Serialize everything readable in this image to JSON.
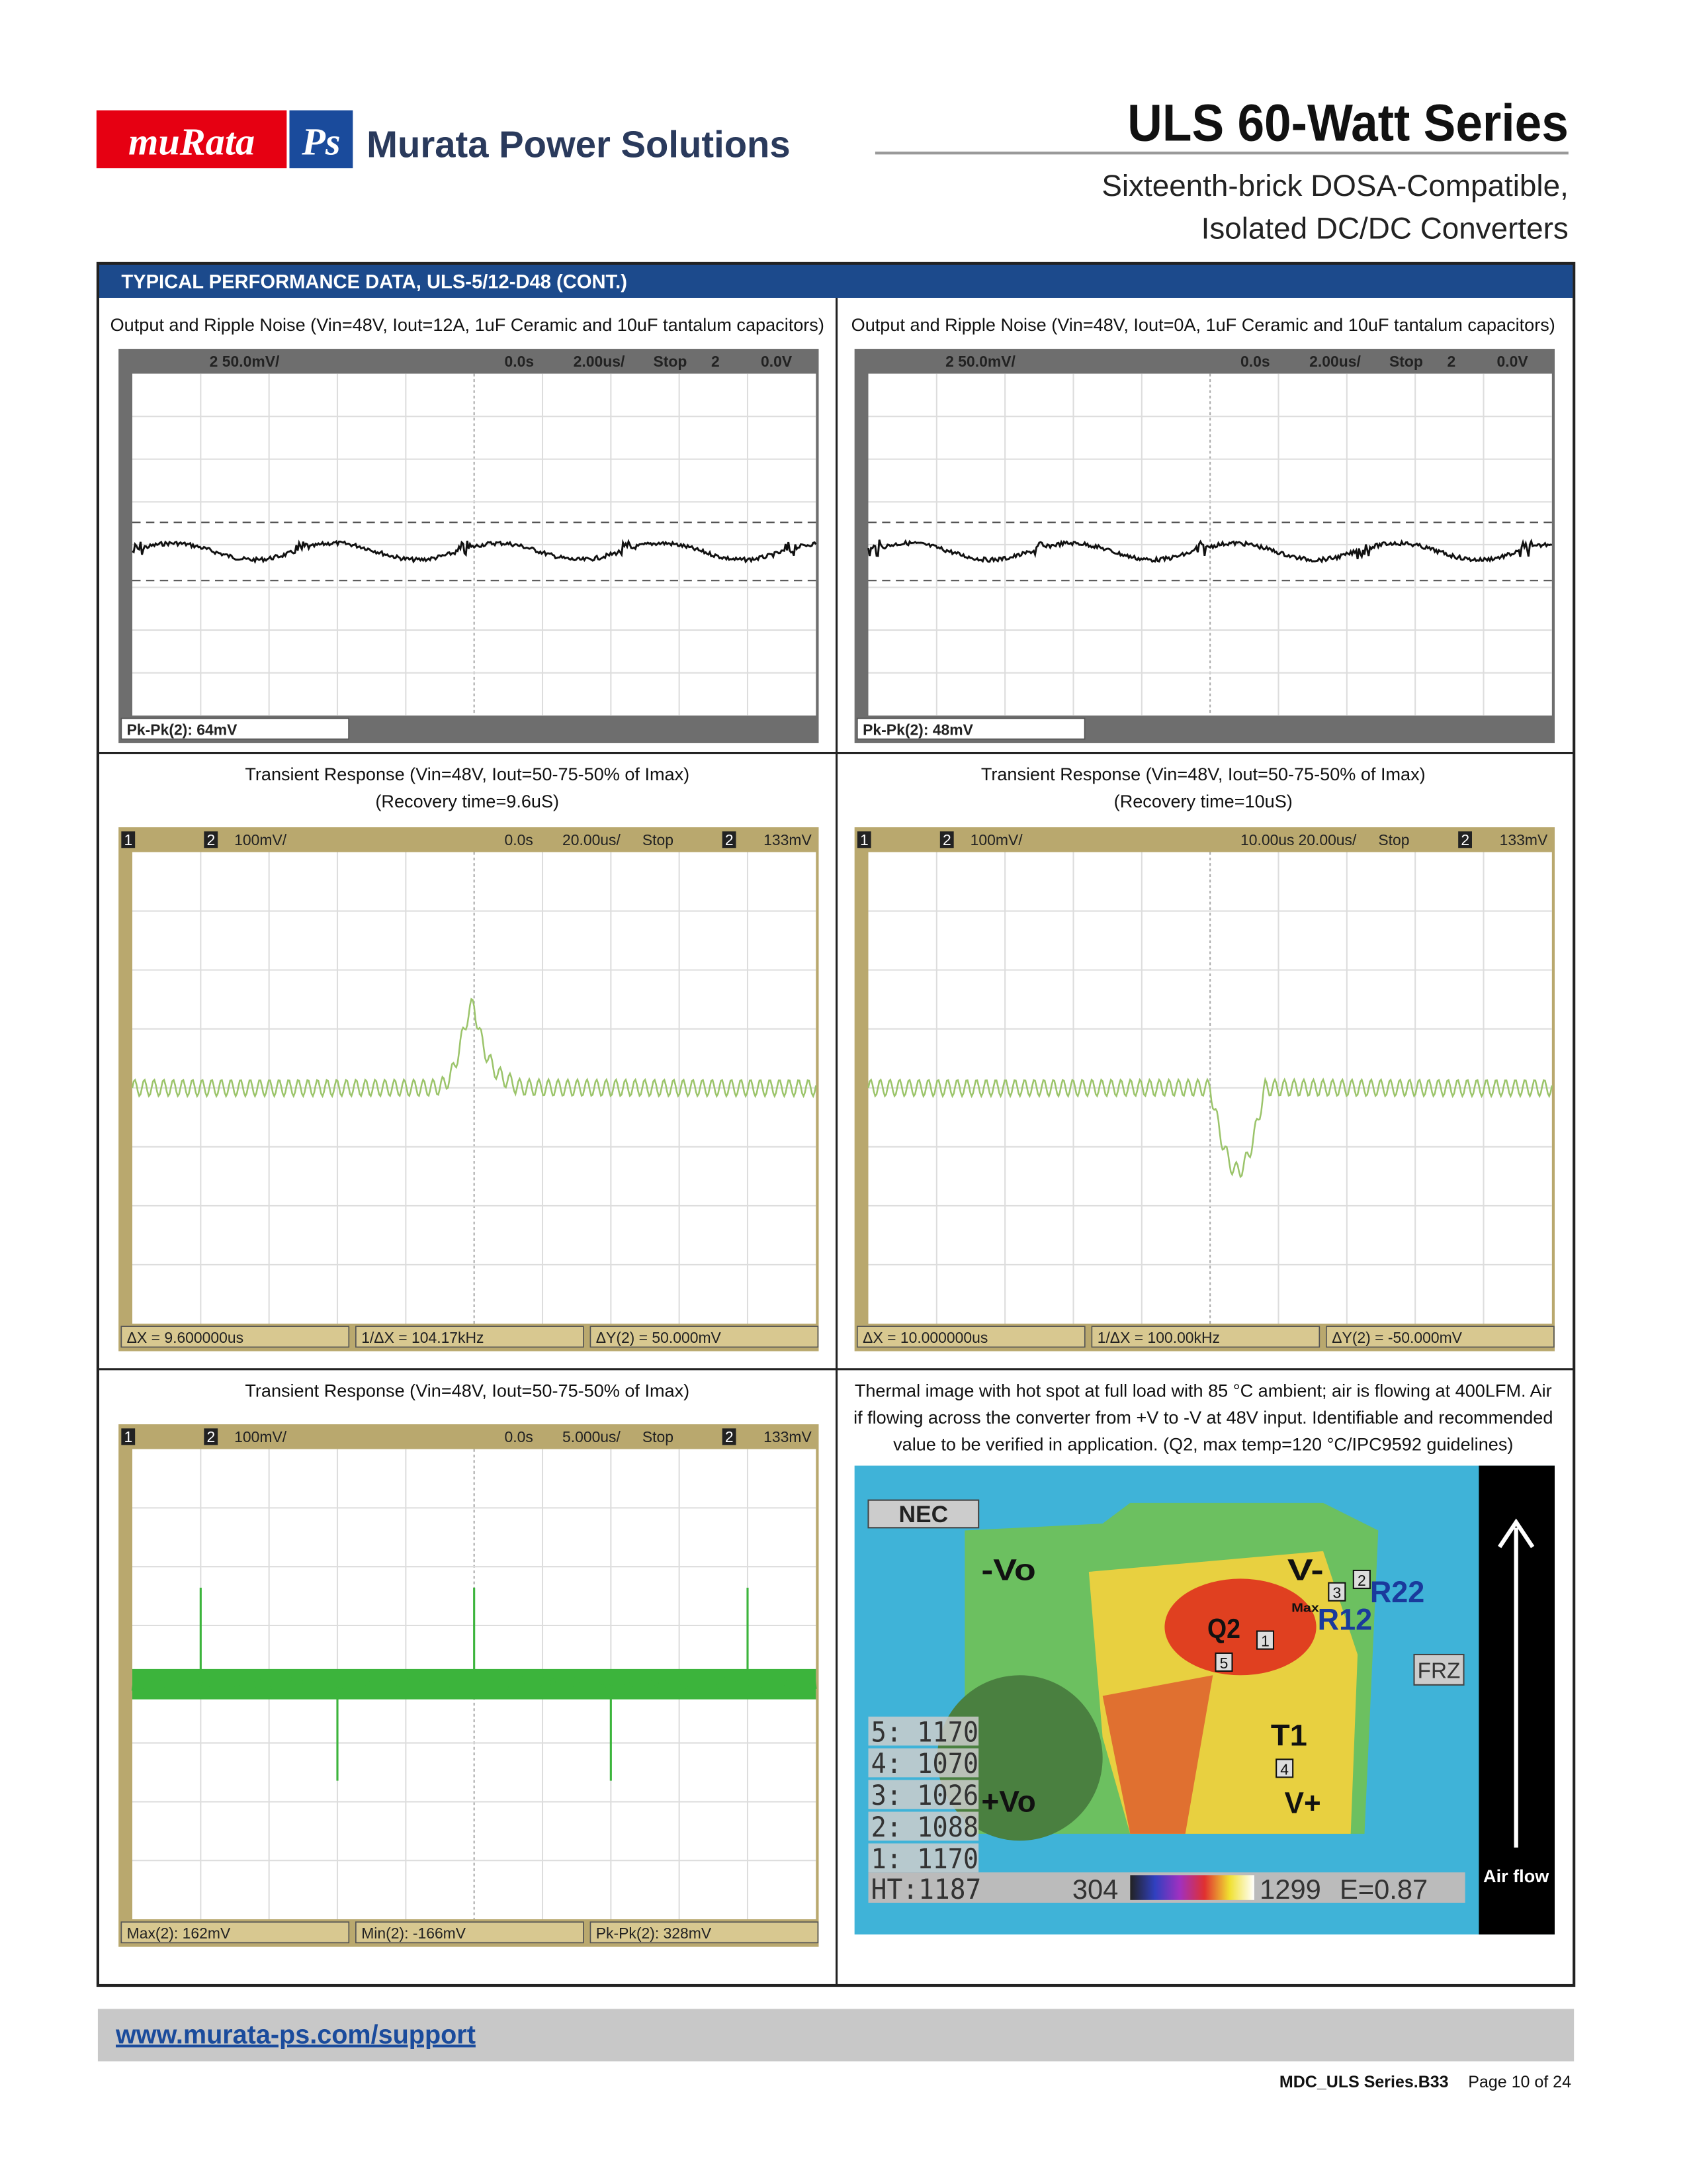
{
  "header": {
    "logo_left": "muRata",
    "logo_right": "Ps",
    "company": "Murata Power Solutions",
    "title": "ULS 60-Watt Series",
    "subtitle": [
      "Sixteenth-brick DOSA-Compatible,",
      "Isolated DC/DC Converters"
    ]
  },
  "section_title": "TYPICAL PERFORMANCE DATA, ULS-5/12-D48 (CONT.)",
  "panels": [
    {
      "caption": [
        "Output and Ripple Noise (Vin=48V, Iout=12A, 1uF Ceramic and 10uF tantalum capacitors)"
      ],
      "scope": {
        "header": [
          "2 50.0mV/",
          "0.0s",
          "2.00us/",
          "Stop",
          "2",
          "0.0V"
        ],
        "footer": [
          "Pk-Pk(2):  64mV"
        ]
      }
    },
    {
      "caption": [
        "Output and Ripple Noise (Vin=48V, Iout=0A, 1uF Ceramic and 10uF tantalum capacitors)"
      ],
      "scope": {
        "header": [
          "2 50.0mV/",
          "0.0s",
          "2.00us/",
          "Stop",
          "2",
          "0.0V"
        ],
        "footer": [
          "Pk-Pk(2):  48mV"
        ]
      }
    },
    {
      "caption": [
        "Transient Response (Vin=48V, Iout=50-75-50% of Imax)",
        "(Recovery time=9.6uS)"
      ],
      "scope": {
        "header": [
          "1",
          "2",
          "100mV/",
          "0.0s",
          "20.00us/",
          "Stop",
          "2",
          "133mV"
        ],
        "footer": [
          "ΔX = 9.600000us",
          "1/ΔX = 104.17kHz",
          "ΔY(2) = 50.000mV"
        ]
      }
    },
    {
      "caption": [
        "Transient Response (Vin=48V, Iout=50-75-50% of Imax)",
        "(Recovery time=10uS)"
      ],
      "scope": {
        "header": [
          "1",
          "2",
          "100mV/",
          "10.00us",
          "20.00us/",
          "Stop",
          "2",
          "133mV"
        ],
        "footer": [
          "ΔX = 10.000000us",
          "1/ΔX = 100.00kHz",
          "ΔY(2) = -50.000mV"
        ]
      }
    },
    {
      "caption": [
        "Transient Response (Vin=48V, Iout=50-75-50% of Imax)"
      ],
      "scope": {
        "header": [
          "1",
          "2",
          "100mV/",
          "0.0s",
          "5.000us/",
          "Stop",
          "2",
          "133mV"
        ],
        "footer": [
          "Max(2): 162mV",
          "Min(2): -166mV",
          "Pk-Pk(2): 328mV"
        ]
      }
    },
    {
      "caption": [
        "Thermal image with hot spot at full load with 85 °C ambient; air is flowing at 400LFM. Air",
        "if flowing across the converter from +V to -V at 48V input. Identifiable and recommended",
        "value to be verified in application. (Q2, max temp=120 °C/IPC9592 guidelines)"
      ],
      "thermal": {
        "brand": "NEC",
        "labels": [
          "-Vo",
          "V-",
          "Q2",
          "R22",
          "R12",
          "T1",
          "+Vo",
          "V+",
          "Max"
        ],
        "mode": "FRZ",
        "points": [
          "1",
          "2",
          "3",
          "4",
          "5"
        ],
        "readings": [
          "5: 1170",
          "4: 1070",
          "3: 1026",
          "2: 1088",
          "1: 1170"
        ],
        "hot": "HT:1187",
        "scale_low": "304",
        "scale_high": "1299",
        "emissivity": "E=0.87",
        "airflow": "Air flow"
      }
    }
  ],
  "footer": {
    "url": "www.murata-ps.com/support",
    "doc_id": "MDC_ULS Series.B33",
    "page": "Page 10 of 24"
  }
}
